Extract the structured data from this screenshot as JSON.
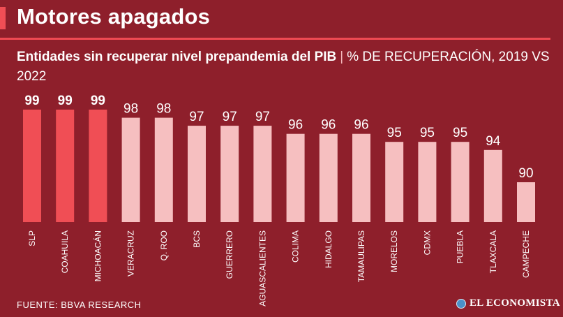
{
  "header": {
    "title": "Motores apagados",
    "subtitle_bold": "Entidades sin recuperar nivel prepandemia del PIB",
    "subtitle_sep": "|",
    "subtitle_rest": "% DE RECUPERACIÓN, 2019 VS 2022"
  },
  "footer": {
    "source": "FUENTE: BBVA RESEARCH",
    "logo": "EL ECONOMISTA"
  },
  "colors": {
    "background": "#8e1f2b",
    "highlight": "#f04e55",
    "normal": "#f6bfc0",
    "label": "#ffffff"
  },
  "chart_data": {
    "type": "bar",
    "title": "Entidades sin recuperar nivel prepandemia del PIB",
    "ylabel": "% de recuperación, 2019 vs 2022",
    "categories": [
      "SLP",
      "COAHUILA",
      "MICHOACÁN",
      "VERACRUZ",
      "Q. ROO",
      "BCS",
      "GUERRERO",
      "AGUASCALIENTES",
      "COLIMA",
      "HIDALGO",
      "TAMAULIPAS",
      "MORELOS",
      "CDMX",
      "PUEBLA",
      "TLAXCALA",
      "CAMPECHE"
    ],
    "values": [
      99,
      99,
      99,
      98,
      98,
      97,
      97,
      97,
      96,
      96,
      96,
      95,
      95,
      95,
      94,
      90
    ],
    "highlighted": [
      true,
      true,
      true,
      false,
      false,
      false,
      false,
      false,
      false,
      false,
      false,
      false,
      false,
      false,
      false,
      false
    ],
    "ylim": [
      86,
      99
    ],
    "grid": false,
    "legend": "none"
  }
}
